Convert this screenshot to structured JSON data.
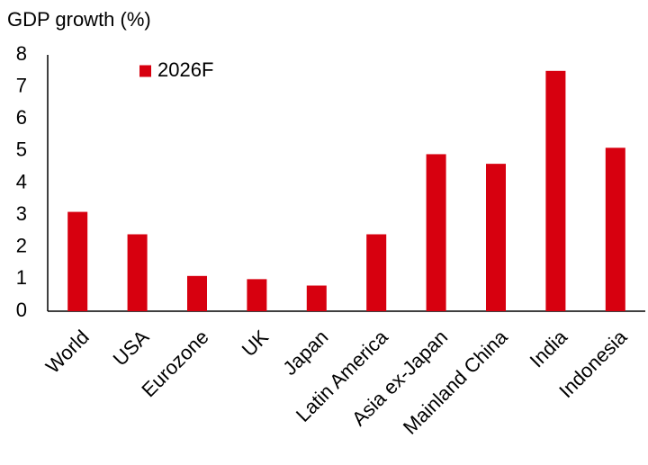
{
  "chart_data": {
    "type": "bar",
    "title": "GDP growth (%)",
    "categories": [
      "World",
      "USA",
      "Eurozone",
      "UK",
      "Japan",
      "Latin America",
      "Asia ex-Japan",
      "Mainland China",
      "India",
      "Indonesia"
    ],
    "series": [
      {
        "name": "2026F",
        "color": "#d7000f",
        "values": [
          3.1,
          2.4,
          1.1,
          1.0,
          0.8,
          2.4,
          4.9,
          4.6,
          7.5,
          5.1
        ]
      }
    ],
    "ylim": [
      0,
      8
    ],
    "yticks": [
      0,
      1,
      2,
      3,
      4,
      5,
      6,
      7,
      8
    ],
    "grid": false,
    "legend": "top-left"
  }
}
